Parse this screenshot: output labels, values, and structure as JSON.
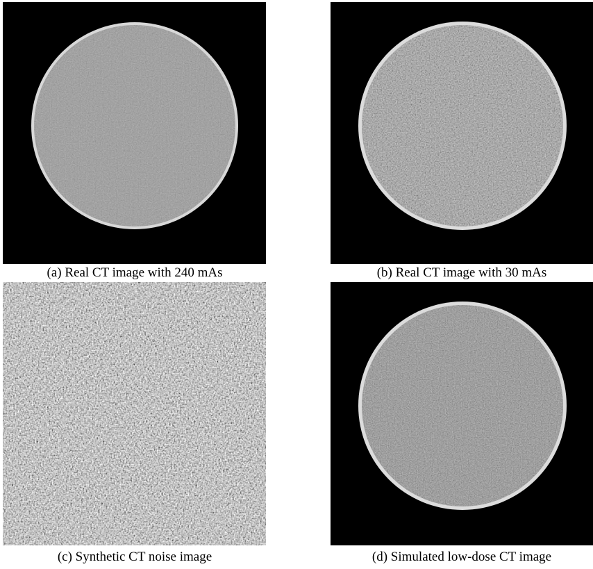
{
  "figure": {
    "panels": [
      {
        "caption": "(a) Real CT image with 240 mAs"
      },
      {
        "caption": "(b) Real CT image with 30 mAs"
      },
      {
        "caption": "(c) Synthetic CT noise image"
      },
      {
        "caption": "(d) Simulated low-dose CT image"
      }
    ]
  }
}
